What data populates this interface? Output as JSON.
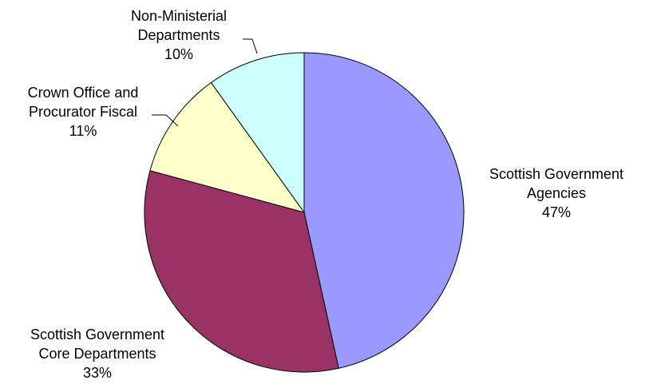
{
  "chart_data": {
    "type": "pie",
    "title": "",
    "legend": "none",
    "start": "12 o'clock",
    "direction": "clockwise",
    "slices": [
      {
        "label_lines": [
          "Scottish Government",
          "Agencies"
        ],
        "value": 47,
        "percent_label": "47%",
        "color": "#9999FF"
      },
      {
        "label_lines": [
          "Scottish Government",
          "Core Departments"
        ],
        "value": 33,
        "percent_label": "33%",
        "color": "#993366"
      },
      {
        "label_lines": [
          "Crown Office and",
          "Procurator Fiscal"
        ],
        "value": 11,
        "percent_label": "11%",
        "color": "#FFFFCC"
      },
      {
        "label_lines": [
          "Non-Ministerial",
          "Departments"
        ],
        "value": 10,
        "percent_label": "10%",
        "color": "#CCFFFF"
      }
    ]
  }
}
